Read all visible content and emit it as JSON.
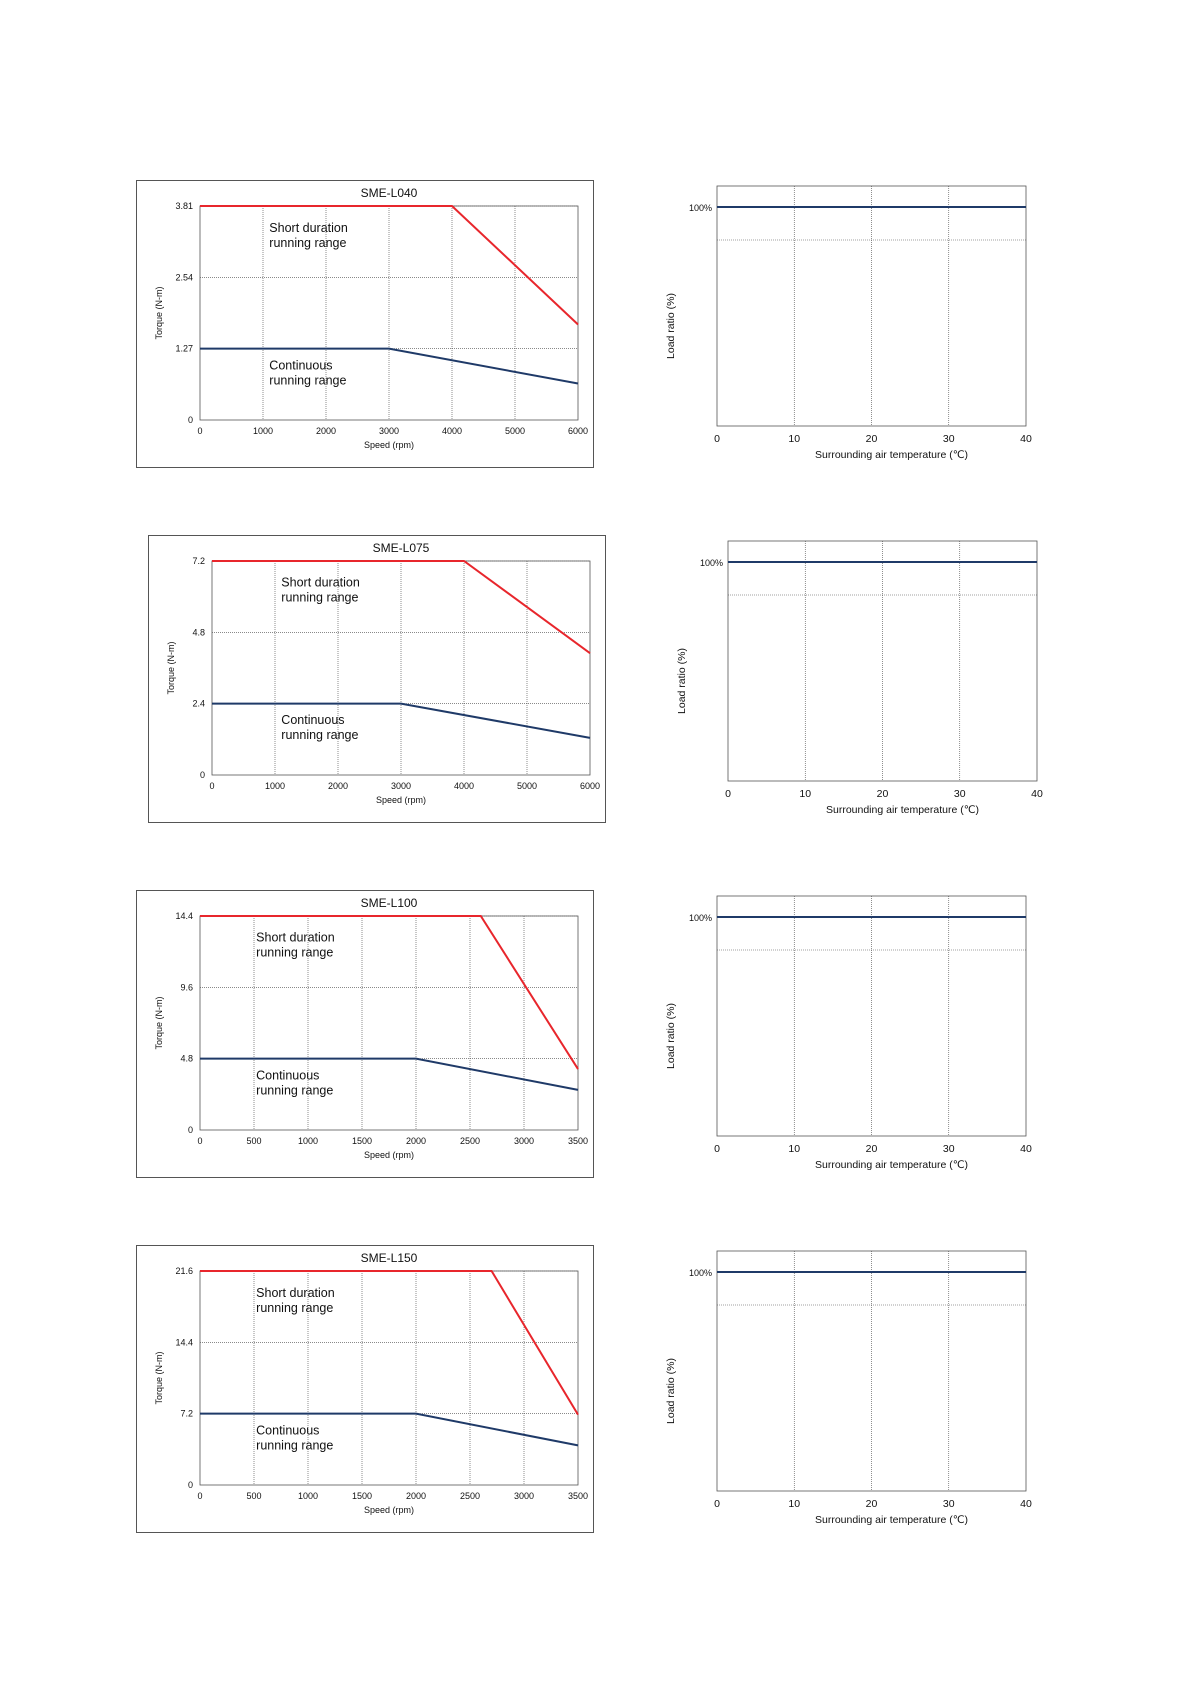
{
  "colors": {
    "short": "#e8262c",
    "continuous": "#1f3a68",
    "grid": "#444444",
    "frame": "#555555"
  },
  "chart_data": [
    {
      "type": "line",
      "title": "SME-L040",
      "xlabel": "Speed (rpm)",
      "ylabel": "Torque (N-m)",
      "xlim": [
        0,
        6000
      ],
      "ylim": [
        0,
        3.81
      ],
      "xticks": [
        "0",
        "1000",
        "2000",
        "3000",
        "4000",
        "5000",
        "6000"
      ],
      "yticks": [
        "0",
        "1.27",
        "2.54",
        "3.81"
      ],
      "yticks_values": [
        0,
        1.27,
        2.54,
        3.81
      ],
      "series": [
        {
          "x": [
            0,
            4000,
            6000
          ],
          "y": [
            3.81,
            3.81,
            1.7
          ]
        },
        {
          "x": [
            0,
            3000,
            6000
          ],
          "y": [
            1.27,
            1.27,
            0.65
          ]
        }
      ],
      "annotations": [
        {
          "lines": [
            "Short duration",
            "running range"
          ],
          "x": 1100,
          "y": 3.35
        },
        {
          "lines": [
            "Continuous",
            "running range"
          ],
          "x": 1100,
          "y": 0.9
        }
      ]
    },
    {
      "type": "line",
      "title": "SME-L075",
      "xlabel": "Speed (rpm)",
      "ylabel": "Torque (N-m)",
      "xlim": [
        0,
        6000
      ],
      "ylim": [
        0,
        7.2
      ],
      "xticks": [
        "0",
        "1000",
        "2000",
        "3000",
        "4000",
        "5000",
        "6000"
      ],
      "yticks": [
        "0",
        "2.4",
        "4.8",
        "7.2"
      ],
      "yticks_values": [
        0,
        2.4,
        4.8,
        7.2
      ],
      "series": [
        {
          "x": [
            0,
            4000,
            6000
          ],
          "y": [
            7.2,
            7.2,
            4.1
          ]
        },
        {
          "x": [
            0,
            3000,
            6000
          ],
          "y": [
            2.4,
            2.4,
            1.25
          ]
        }
      ],
      "annotations": [
        {
          "lines": [
            "Short duration",
            "running range"
          ],
          "x": 1100,
          "y": 6.35
        },
        {
          "lines": [
            "Continuous",
            "running range"
          ],
          "x": 1100,
          "y": 1.72
        }
      ]
    },
    {
      "type": "line",
      "title": "SME-L100",
      "xlabel": "Speed (rpm)",
      "ylabel": "Torque (N-m)",
      "xlim": [
        0,
        3500
      ],
      "ylim": [
        0,
        14.4
      ],
      "xticks": [
        "0",
        "500",
        "1000",
        "1500",
        "2000",
        "2500",
        "3000",
        "3500"
      ],
      "yticks": [
        "0",
        "4.8",
        "9.6",
        "14.4"
      ],
      "yticks_values": [
        0,
        4.8,
        9.6,
        14.4
      ],
      "series": [
        {
          "x": [
            0,
            2600,
            3500
          ],
          "y": [
            14.4,
            14.4,
            4.1
          ]
        },
        {
          "x": [
            0,
            2000,
            3500
          ],
          "y": [
            4.8,
            4.8,
            2.7
          ]
        }
      ],
      "annotations": [
        {
          "lines": [
            "Short duration",
            "running range"
          ],
          "x": 520,
          "y": 12.7
        },
        {
          "lines": [
            "Continuous",
            "running range"
          ],
          "x": 520,
          "y": 3.4
        }
      ]
    },
    {
      "type": "line",
      "title": "SME-L150",
      "xlabel": "Speed (rpm)",
      "ylabel": "Torque (N-m)",
      "xlim": [
        0,
        3500
      ],
      "ylim": [
        0,
        21.6
      ],
      "xticks": [
        "0",
        "500",
        "1000",
        "1500",
        "2000",
        "2500",
        "3000",
        "3500"
      ],
      "yticks": [
        "0",
        "7.2",
        "14.4",
        "21.6"
      ],
      "yticks_values": [
        0,
        7.2,
        14.4,
        21.6
      ],
      "series": [
        {
          "x": [
            0,
            2700,
            3500
          ],
          "y": [
            21.6,
            21.6,
            7.1
          ]
        },
        {
          "x": [
            0,
            2000,
            3500
          ],
          "y": [
            7.2,
            7.2,
            4.0
          ]
        }
      ],
      "annotations": [
        {
          "lines": [
            "Short duration",
            "running range"
          ],
          "x": 520,
          "y": 19.0
        },
        {
          "lines": [
            "Continuous",
            "running range"
          ],
          "x": 520,
          "y": 5.1
        }
      ]
    },
    {
      "type": "line",
      "xlabel": "Surrounding air temperature (℃)",
      "ylabel": "Load ratio (%)",
      "xlim": [
        0,
        40
      ],
      "ylim": [
        0,
        100
      ],
      "xticks": [
        "0",
        "10",
        "20",
        "30",
        "40"
      ],
      "yticks": [
        "100%"
      ],
      "series": [
        {
          "x": [
            0,
            40
          ],
          "y": [
            100,
            100
          ]
        }
      ]
    },
    {
      "type": "line",
      "xlabel": "Surrounding air temperature (℃)",
      "ylabel": "Load ratio (%)",
      "xlim": [
        0,
        40
      ],
      "ylim": [
        0,
        100
      ],
      "xticks": [
        "0",
        "10",
        "20",
        "30",
        "40"
      ],
      "yticks": [
        "100%"
      ],
      "series": [
        {
          "x": [
            0,
            40
          ],
          "y": [
            100,
            100
          ]
        }
      ]
    },
    {
      "type": "line",
      "xlabel": "Surrounding air temperature (℃)",
      "ylabel": "Load ratio (%)",
      "xlim": [
        0,
        40
      ],
      "ylim": [
        0,
        100
      ],
      "xticks": [
        "0",
        "10",
        "20",
        "30",
        "40"
      ],
      "yticks": [
        "100%"
      ],
      "series": [
        {
          "x": [
            0,
            40
          ],
          "y": [
            100,
            100
          ]
        }
      ]
    },
    {
      "type": "line",
      "xlabel": "Surrounding air temperature (℃)",
      "ylabel": "Load ratio (%)",
      "xlim": [
        0,
        40
      ],
      "ylim": [
        0,
        100
      ],
      "xticks": [
        "0",
        "10",
        "20",
        "30",
        "40"
      ],
      "yticks": [
        "100%"
      ],
      "series": [
        {
          "x": [
            0,
            40
          ],
          "y": [
            100,
            100
          ]
        }
      ]
    }
  ]
}
